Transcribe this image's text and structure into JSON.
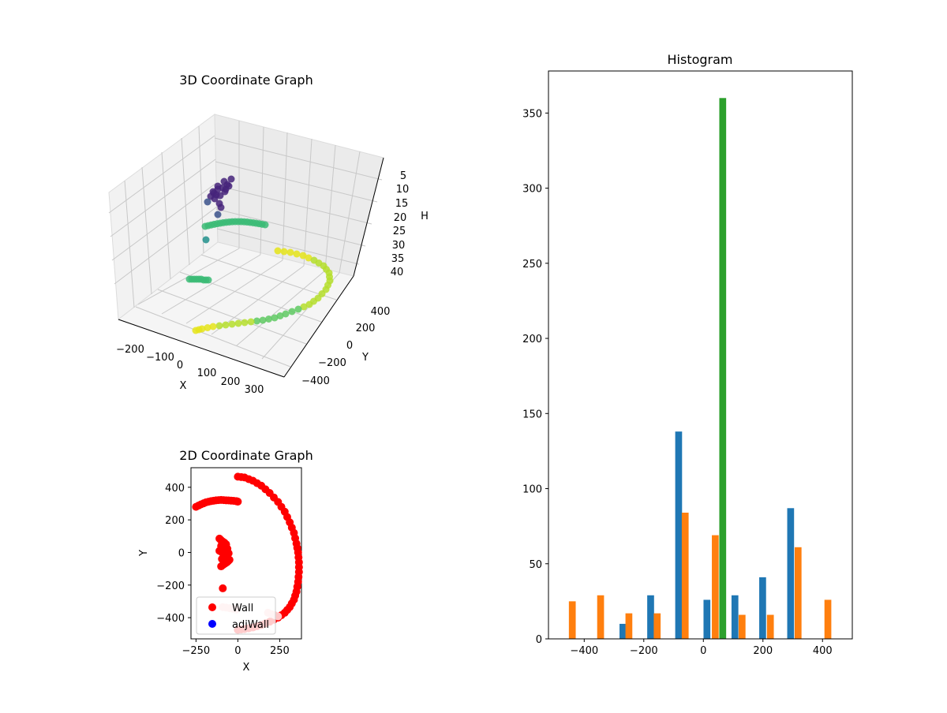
{
  "colors": {
    "blue": "#1f77b4",
    "orange": "#ff7f0e",
    "green": "#2ca02c",
    "red": "#ff0000",
    "legend_blue": "#0000ff"
  },
  "chart_data": [
    {
      "id": "scatter3d",
      "type": "scatter",
      "title": "3D Coordinate Graph",
      "xlabel": "X",
      "ylabel": "Y",
      "zlabel": "H",
      "x_ticks": [
        "−200",
        "−100",
        "0",
        "100",
        "200",
        "300"
      ],
      "y_ticks": [
        "−400",
        "−200",
        "0",
        "200",
        "400"
      ],
      "z_ticks": [
        "5",
        "10",
        "15",
        "20",
        "25",
        "30",
        "35",
        "40"
      ],
      "colormap": "viridis",
      "grid": true
    },
    {
      "id": "scatter2d",
      "type": "scatter",
      "title": "2D Coordinate Graph",
      "xlabel": "X",
      "ylabel": "Y",
      "xlim": [
        -280,
        380
      ],
      "ylim": [
        -530,
        520
      ],
      "x_ticks": [
        -250,
        0,
        250
      ],
      "y_ticks": [
        -400,
        -200,
        0,
        200,
        400
      ],
      "legend": {
        "position": "lower-left",
        "entries": [
          "Wall",
          "adjWall"
        ]
      },
      "series": [
        {
          "name": "Wall",
          "color": "#ff0000",
          "segments": [
            {
              "x": [
                -250,
                -220,
                -190,
                -160,
                -130,
                -100,
                -70,
                -40,
                -10,
                0
              ],
              "y": [
                280,
                295,
                308,
                315,
                320,
                322,
                320,
                318,
                315,
                312
              ]
            },
            {
              "x": [
                0,
                40,
                90,
                140,
                190,
                240,
                280,
                310,
                335,
                350,
                360,
                365,
                365,
                360,
                350,
                335,
                310,
                280,
                240,
                190,
                140,
                90,
                40,
                0
              ],
              "y": [
                465,
                460,
                440,
                410,
                365,
                310,
                250,
                185,
                120,
                55,
                0,
                -60,
                -120,
                -180,
                -240,
                -290,
                -335,
                -370,
                -400,
                -425,
                -445,
                -460,
                -470,
                -475
              ]
            },
            {
              "x": [
                -110,
                -95,
                -80,
                -100,
                -85,
                -70,
                -110,
                -90,
                -60,
                -75,
                -95,
                -50,
                -65,
                -80,
                -100,
                -70,
                -55,
                -85,
                -90
              ],
              "y": [
                85,
                70,
                60,
                40,
                30,
                20,
                10,
                0,
                -10,
                -25,
                -40,
                -45,
                -60,
                -70,
                -85,
                50,
                -5,
                -20,
                -220
              ]
            }
          ]
        },
        {
          "name": "adjWall",
          "color": "#ffc8c8",
          "segments": [
            {
              "x": [
                -90,
                -70,
                -50,
                -30,
                -10
              ],
              "y": [
                -335,
                -338,
                -342,
                -345,
                -350
              ]
            },
            {
              "x": [
                180,
                200,
                220,
                240
              ],
              "y": [
                -370,
                -378,
                -385,
                -392
              ]
            }
          ]
        }
      ]
    },
    {
      "id": "histogram",
      "type": "bar",
      "title": "Histogram",
      "xlim": [
        -520,
        500
      ],
      "ylim": [
        0,
        378
      ],
      "x_ticks": [
        -400,
        -200,
        0,
        200,
        400
      ],
      "y_ticks": [
        0,
        50,
        100,
        150,
        200,
        250,
        300,
        350
      ],
      "bar_width": 23,
      "series": [
        {
          "color": "#1f77b4",
          "x": [
            -270,
            -177,
            -83,
            12,
            106,
            199,
            293
          ],
          "values": [
            10,
            29,
            138,
            26,
            29,
            41,
            87
          ]
        },
        {
          "color": "#ff7f0e",
          "x": [
            -440,
            -345,
            -250,
            -155,
            -61,
            40,
            130,
            225,
            418,
            318
          ],
          "values": [
            25,
            29,
            17,
            17,
            84,
            69,
            16,
            16,
            26,
            61
          ]
        },
        {
          "color": "#2ca02c",
          "x": [
            65
          ],
          "values": [
            360
          ]
        }
      ]
    }
  ]
}
